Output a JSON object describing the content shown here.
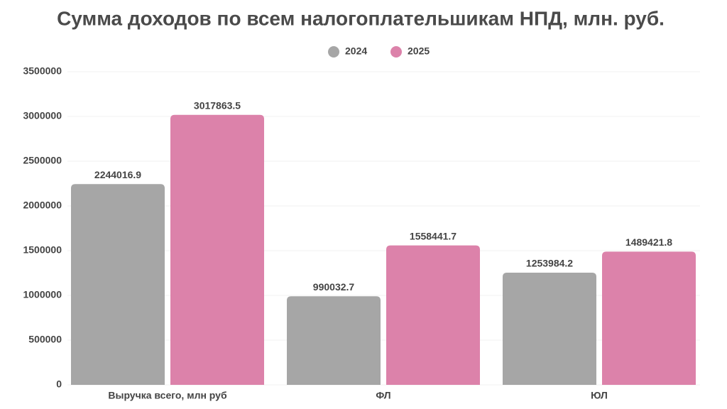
{
  "chart_data": {
    "type": "bar",
    "title": "Сумма доходов по всем налогоплательшикам НПД, млн. руб.",
    "categories": [
      "Выручка всего, млн руб",
      "ФЛ",
      "ЮЛ"
    ],
    "series": [
      {
        "name": "2024",
        "color": "#a6a6a6",
        "values": [
          2244016.9,
          990032.7,
          1253984.2
        ]
      },
      {
        "name": "2025",
        "color": "#dc82aa",
        "values": [
          3017863.5,
          1558441.7,
          1489421.8
        ]
      }
    ],
    "ylim": [
      0,
      3500000
    ],
    "yticks": [
      0,
      500000,
      1000000,
      1500000,
      2000000,
      2500000,
      3000000,
      3500000
    ],
    "grid": true
  }
}
